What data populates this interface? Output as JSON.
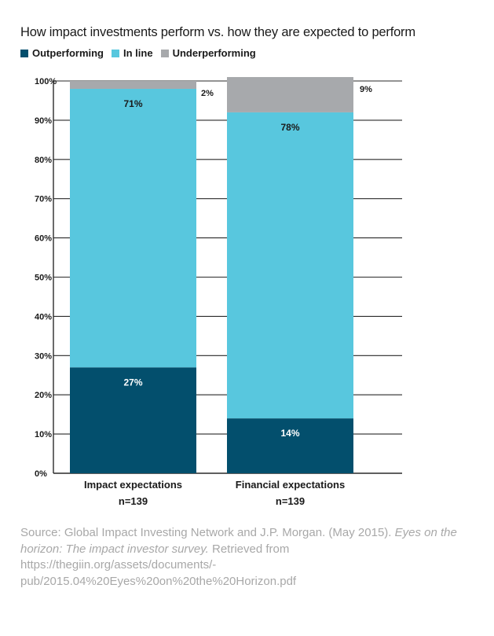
{
  "chart_data": {
    "type": "bar",
    "stacked": true,
    "title": "How impact investments perform vs. how they are expected to perform",
    "categories": [
      "Impact expectations",
      "Financial expectations"
    ],
    "sample_sizes": [
      "n=139",
      "n=139"
    ],
    "series": [
      {
        "name": "Outperforming",
        "color": "#034f6d",
        "values": [
          27,
          14
        ],
        "labels": [
          "27%",
          "14%"
        ]
      },
      {
        "name": "In line",
        "color": "#58c7de",
        "values": [
          71,
          78
        ],
        "labels": [
          "71%",
          "78%"
        ]
      },
      {
        "name": "Underperforming",
        "color": "#a7a9ac",
        "values": [
          2,
          9
        ],
        "labels": [
          "2%",
          "9%"
        ]
      }
    ],
    "yticks": [
      "0%",
      "10%",
      "20%",
      "30%",
      "40%",
      "50%",
      "60%",
      "70%",
      "80%",
      "90%",
      "100%"
    ],
    "ylim": [
      0,
      100
    ],
    "grid": true,
    "legend_position": "top-left"
  },
  "source": {
    "prefix": "Source: Global Impact Investing Network and J.P. Morgan. (May 2015). ",
    "title_italic": "Eyes on the horizon: The impact investor survey.",
    "suffix": " Retrieved from https://thegiin.org/assets/documents/-pub/2015.04%20Eyes%20on%20the%20Horizon.pdf"
  }
}
